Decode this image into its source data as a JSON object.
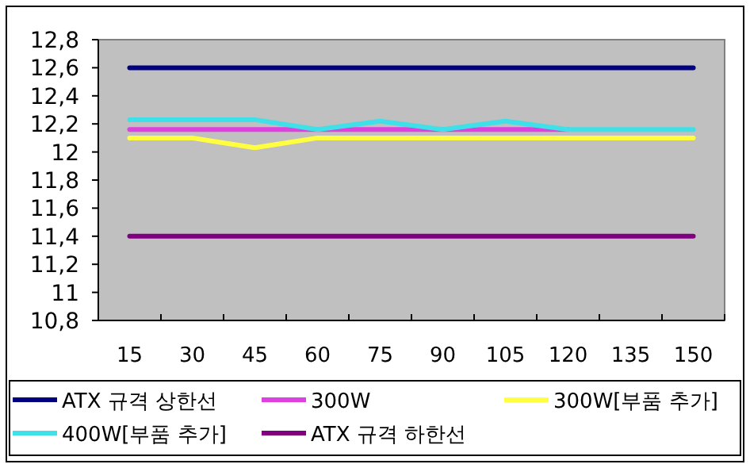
{
  "chart_data": {
    "type": "line",
    "categories": [
      "15",
      "30",
      "45",
      "60",
      "75",
      "90",
      "105",
      "120",
      "135",
      "150"
    ],
    "ylim": [
      10.8,
      12.8
    ],
    "yticks": [
      {
        "value": 10.8,
        "label": "10,8"
      },
      11,
      {
        "value": 11.2,
        "label": "11,2"
      },
      {
        "value": 11.4,
        "label": "11,4"
      },
      {
        "value": 11.6,
        "label": "11,6"
      },
      {
        "value": 11.8,
        "label": "11,8"
      },
      12,
      {
        "value": 12.2,
        "label": "12,2"
      },
      {
        "value": 12.4,
        "label": "12,4"
      },
      {
        "value": 12.6,
        "label": "12,6"
      },
      {
        "value": 12.8,
        "label": "12,8"
      }
    ],
    "legend": "bottom",
    "series": [
      {
        "name": "ATX 규격 상한선",
        "color": "#000080",
        "values": [
          12.6,
          12.6,
          12.6,
          12.6,
          12.6,
          12.6,
          12.6,
          12.6,
          12.6,
          12.6
        ]
      },
      {
        "name": "300W",
        "color": "#e040e0",
        "values": [
          12.16,
          12.16,
          12.16,
          12.16,
          12.16,
          12.16,
          12.16,
          12.16,
          null,
          null
        ]
      },
      {
        "name": "300W[부품 추가]",
        "color": "#ffff40",
        "values": [
          12.1,
          12.1,
          12.03,
          12.1,
          12.1,
          12.1,
          12.1,
          12.1,
          12.1,
          12.1
        ]
      },
      {
        "name": "400W[부품 추가]",
        "color": "#40e0e8",
        "values": [
          12.23,
          12.23,
          12.23,
          12.16,
          12.22,
          12.16,
          12.22,
          12.16,
          12.16,
          12.16
        ]
      },
      {
        "name": "ATX 규격 하한선",
        "color": "#800080",
        "values": [
          11.4,
          11.4,
          11.4,
          11.4,
          11.4,
          11.4,
          11.4,
          11.4,
          11.4,
          11.4
        ]
      }
    ]
  }
}
